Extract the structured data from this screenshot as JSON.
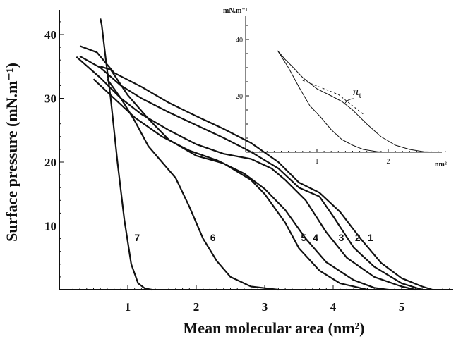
{
  "chart_data": [
    {
      "type": "line",
      "xlabel": "Mean molecular area (nm²)",
      "ylabel": "Surface pressure (mN.m⁻¹)",
      "xlim": [
        0,
        5.8
      ],
      "ylim": [
        0,
        43
      ],
      "x_ticks": [
        "1",
        "2",
        "3",
        "4",
        "5"
      ],
      "y_ticks": [
        "10",
        "20",
        "30",
        "40"
      ],
      "grid": false,
      "series": [
        {
          "name": "1",
          "points": [
            [
              0.3,
              38.2
            ],
            [
              0.55,
              37.2
            ],
            [
              0.8,
              34.0
            ],
            [
              1.2,
              31.8
            ],
            [
              1.6,
              29.3
            ],
            [
              2.0,
              27.2
            ],
            [
              2.4,
              25.2
            ],
            [
              2.8,
              23.0
            ],
            [
              3.2,
              20.0
            ],
            [
              3.5,
              16.8
            ],
            [
              3.8,
              15.2
            ],
            [
              4.1,
              12.2
            ],
            [
              4.4,
              8.0
            ],
            [
              4.7,
              4.2
            ],
            [
              5.0,
              1.8
            ],
            [
              5.3,
              0.5
            ],
            [
              5.45,
              0
            ]
          ]
        },
        {
          "name": "2",
          "points": [
            [
              0.3,
              36.6
            ],
            [
              0.6,
              34.8
            ],
            [
              0.9,
              32.0
            ],
            [
              1.2,
              30.0
            ],
            [
              1.6,
              27.8
            ],
            [
              2.0,
              25.8
            ],
            [
              2.4,
              23.8
            ],
            [
              2.8,
              21.6
            ],
            [
              3.2,
              19.0
            ],
            [
              3.5,
              16.0
            ],
            [
              3.8,
              14.6
            ],
            [
              4.0,
              11.5
            ],
            [
              4.3,
              6.6
            ],
            [
              4.6,
              3.6
            ],
            [
              5.0,
              1.0
            ],
            [
              5.3,
              0
            ]
          ]
        },
        {
          "name": "3",
          "points": [
            [
              0.25,
              36.5
            ],
            [
              0.6,
              33.2
            ],
            [
              0.9,
              30.0
            ],
            [
              1.2,
              27.5
            ],
            [
              1.6,
              25.0
            ],
            [
              2.0,
              22.8
            ],
            [
              2.4,
              21.3
            ],
            [
              2.8,
              20.5
            ],
            [
              3.1,
              19.0
            ],
            [
              3.3,
              17.2
            ],
            [
              3.6,
              14.0
            ],
            [
              3.9,
              9.0
            ],
            [
              4.2,
              5.0
            ],
            [
              4.6,
              2.0
            ],
            [
              5.0,
              0.5
            ],
            [
              5.2,
              0
            ]
          ]
        },
        {
          "name": "4",
          "points": [
            [
              0.5,
              33.0
            ],
            [
              0.8,
              30.0
            ],
            [
              1.1,
              27.0
            ],
            [
              1.5,
              24.0
            ],
            [
              1.9,
              21.8
            ],
            [
              2.3,
              20.3
            ],
            [
              2.7,
              18.2
            ],
            [
              3.0,
              15.8
            ],
            [
              3.3,
              12.5
            ],
            [
              3.6,
              8.0
            ],
            [
              3.9,
              4.3
            ],
            [
              4.3,
              1.5
            ],
            [
              4.6,
              0.3
            ],
            [
              4.8,
              0
            ]
          ]
        },
        {
          "name": "5",
          "points": [
            [
              0.6,
              35.0
            ],
            [
              0.75,
              34.5
            ],
            [
              1.0,
              30.5
            ],
            [
              1.3,
              26.8
            ],
            [
              1.6,
              23.5
            ],
            [
              2.0,
              21.0
            ],
            [
              2.4,
              19.8
            ],
            [
              2.8,
              17.2
            ],
            [
              3.0,
              15.0
            ],
            [
              3.3,
              10.5
            ],
            [
              3.5,
              6.5
            ],
            [
              3.8,
              3.0
            ],
            [
              4.1,
              1.0
            ],
            [
              4.5,
              0
            ]
          ]
        },
        {
          "name": "6",
          "points": [
            [
              0.7,
              33.0
            ],
            [
              0.9,
              30.0
            ],
            [
              1.1,
              26.5
            ],
            [
              1.3,
              22.5
            ],
            [
              1.5,
              20.0
            ],
            [
              1.7,
              17.5
            ],
            [
              1.9,
              13.0
            ],
            [
              2.1,
              8.0
            ],
            [
              2.3,
              4.5
            ],
            [
              2.5,
              2.0
            ],
            [
              2.8,
              0.5
            ],
            [
              3.2,
              0
            ]
          ]
        },
        {
          "name": "7",
          "points": [
            [
              0.6,
              42.5
            ],
            [
              0.62,
              41.5
            ],
            [
              0.68,
              36.0
            ],
            [
              0.75,
              30.0
            ],
            [
              0.85,
              20.0
            ],
            [
              0.95,
              11.0
            ],
            [
              1.05,
              4.0
            ],
            [
              1.15,
              1.0
            ],
            [
              1.25,
              0.2
            ],
            [
              1.35,
              0
            ]
          ]
        }
      ]
    },
    {
      "type": "line",
      "ylabel": "mN.m⁻¹",
      "xlabel": "nm²",
      "xlim": [
        0,
        2.9
      ],
      "ylim": [
        0,
        47
      ],
      "x_ticks": [
        "1",
        "2"
      ],
      "y_ticks": [
        "20",
        "40"
      ],
      "annotations": [
        {
          "text": "π",
          "subscript": "t"
        }
      ],
      "series": [
        {
          "points": [
            [
              0.45,
              36.0
            ],
            [
              0.55,
              33.0
            ],
            [
              0.65,
              30.5
            ],
            [
              0.8,
              26.5
            ],
            [
              1.0,
              22.5
            ],
            [
              1.2,
              20.0
            ],
            [
              1.35,
              18.0
            ],
            [
              1.5,
              15.0
            ],
            [
              1.7,
              10.0
            ],
            [
              1.9,
              5.5
            ],
            [
              2.1,
              2.5
            ],
            [
              2.3,
              1.0
            ],
            [
              2.5,
              0.2
            ],
            [
              2.75,
              0
            ]
          ]
        },
        {
          "points": [
            [
              0.45,
              36.0
            ],
            [
              0.6,
              30.0
            ],
            [
              0.75,
              23.0
            ],
            [
              0.9,
              16.5
            ],
            [
              1.05,
              12.5
            ],
            [
              1.2,
              8.0
            ],
            [
              1.35,
              4.5
            ],
            [
              1.5,
              2.5
            ],
            [
              1.65,
              1.0
            ],
            [
              1.85,
              0.2
            ],
            [
              2.0,
              0
            ]
          ]
        },
        {
          "style": "dashed",
          "points": [
            [
              0.8,
              25.5
            ],
            [
              1.3,
              20.5
            ],
            [
              1.65,
              13.5
            ]
          ]
        }
      ]
    }
  ]
}
